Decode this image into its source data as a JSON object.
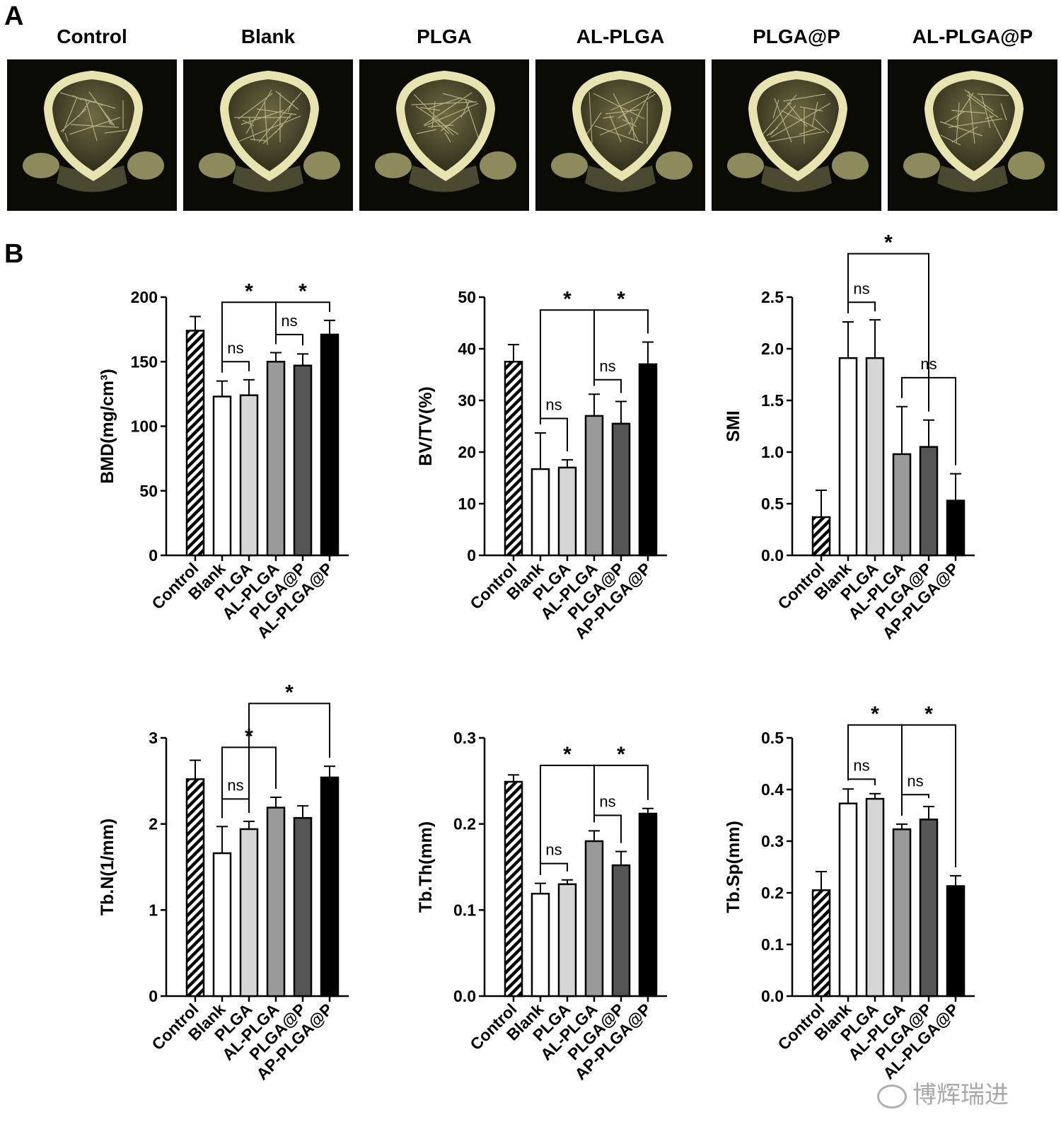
{
  "panel_letters": {
    "a": "A",
    "b": "B"
  },
  "images": [
    {
      "label": "Control"
    },
    {
      "label": "Blank"
    },
    {
      "label": "PLGA"
    },
    {
      "label": "AL-PLGA"
    },
    {
      "label": "PLGA@P"
    },
    {
      "label": "AL-PLGA@P"
    }
  ],
  "chart_data": [
    {
      "type": "bar",
      "ylabel": "BMD(mg/cm³)",
      "ylim": [
        0,
        200
      ],
      "yticks": [
        "0",
        "50",
        "100",
        "150",
        "200"
      ],
      "categories": [
        "Control",
        "Blank",
        "PLGA",
        "AL-PLGA",
        "PLGA@P",
        "AL-PLGA@P"
      ],
      "values": [
        174,
        123,
        124,
        150,
        147,
        171
      ],
      "errors": [
        11,
        12,
        12,
        7,
        9,
        11
      ],
      "annotations": [
        {
          "from": 2,
          "to": 3,
          "label": "ns",
          "y": 150
        },
        {
          "from": 4,
          "to": 5,
          "label": "ns",
          "y": 171
        },
        {
          "from": 2,
          "to": 4,
          "label": "*",
          "y": 196
        },
        {
          "from": 4,
          "to": 6,
          "label": "*",
          "y": 196
        }
      ]
    },
    {
      "type": "bar",
      "ylabel": "BV/TV(%)",
      "ylim": [
        0,
        50
      ],
      "yticks": [
        "0",
        "10",
        "20",
        "30",
        "40",
        "50"
      ],
      "categories": [
        "Control",
        "Blank",
        "PLGA",
        "AL-PLGA",
        "PLGA@P",
        "AP-PLGA@P"
      ],
      "values": [
        37.5,
        16.7,
        17,
        27,
        25.5,
        37
      ],
      "errors": [
        3.3,
        7,
        1.5,
        4.2,
        4.3,
        4.3
      ],
      "annotations": [
        {
          "from": 2,
          "to": 3,
          "label": "ns",
          "y": 26.5
        },
        {
          "from": 4,
          "to": 5,
          "label": "ns",
          "y": 34
        },
        {
          "from": 2,
          "to": 4,
          "label": "*",
          "y": 47.5
        },
        {
          "from": 4,
          "to": 6,
          "label": "*",
          "y": 47.5
        }
      ]
    },
    {
      "type": "bar",
      "ylabel": "SMI",
      "ylim": [
        0,
        2.5
      ],
      "yticks": [
        "0.0",
        "0.5",
        "1.0",
        "1.5",
        "2.0",
        "2.5"
      ],
      "categories": [
        "Control",
        "Blank",
        "PLGA",
        "AL-PLGA",
        "PLGA@P",
        "AP-PLGA@P"
      ],
      "values": [
        0.37,
        1.91,
        1.91,
        0.98,
        1.05,
        0.53
      ],
      "errors": [
        0.26,
        0.35,
        0.37,
        0.46,
        0.26,
        0.26
      ],
      "annotations": [
        {
          "from": 2,
          "to": 3,
          "label": "ns",
          "y": 2.45
        },
        {
          "from": 4,
          "to": 6,
          "label": "ns",
          "y": 1.72
        },
        {
          "from": 2,
          "to": 5,
          "label": "*",
          "y": 2.92
        }
      ]
    },
    {
      "type": "bar",
      "ylabel": "Tb.N(1/mm)",
      "ylim": [
        0,
        3
      ],
      "yticks": [
        "0",
        "1",
        "2",
        "3"
      ],
      "categories": [
        "Control",
        "Blank",
        "PLGA",
        "AL-PLGA",
        "PLGA@P",
        "AP-PLGA@P"
      ],
      "values": [
        2.52,
        1.66,
        1.94,
        2.19,
        2.07,
        2.54
      ],
      "errors": [
        0.22,
        0.31,
        0.09,
        0.12,
        0.14,
        0.13
      ],
      "annotations": [
        {
          "from": 2,
          "to": 3,
          "label": "ns",
          "y": 2.29
        },
        {
          "from": 2,
          "to": 4,
          "label": "*",
          "y": 2.89
        },
        {
          "from": 3,
          "to": 6,
          "label": "*",
          "y": 3.4
        }
      ]
    },
    {
      "type": "bar",
      "ylabel": "Tb.Th(mm)",
      "ylim": [
        0,
        0.3
      ],
      "yticks": [
        "0.0",
        "0.1",
        "0.2",
        "0.3"
      ],
      "categories": [
        "Control",
        "Blank",
        "PLGA",
        "AL-PLGA",
        "PLGA@P",
        "AP-PLGA@P"
      ],
      "values": [
        0.249,
        0.119,
        0.13,
        0.18,
        0.152,
        0.212
      ],
      "errors": [
        0.008,
        0.012,
        0.005,
        0.012,
        0.016,
        0.006
      ],
      "annotations": [
        {
          "from": 2,
          "to": 3,
          "label": "ns",
          "y": 0.154
        },
        {
          "from": 4,
          "to": 5,
          "label": "ns",
          "y": 0.21
        },
        {
          "from": 2,
          "to": 4,
          "label": "*",
          "y": 0.268
        },
        {
          "from": 4,
          "to": 6,
          "label": "*",
          "y": 0.268
        }
      ]
    },
    {
      "type": "bar",
      "ylabel": "Tb.Sp(mm)",
      "ylim": [
        0,
        0.5
      ],
      "yticks": [
        "0.0",
        "0.1",
        "0.2",
        "0.3",
        "0.4",
        "0.5"
      ],
      "categories": [
        "Control",
        "Blank",
        "PLGA",
        "AL-PLGA",
        "PLGA@P",
        "AL-PLGA@P"
      ],
      "values": [
        0.205,
        0.373,
        0.382,
        0.323,
        0.342,
        0.213
      ],
      "errors": [
        0.036,
        0.028,
        0.01,
        0.01,
        0.025,
        0.02
      ],
      "annotations": [
        {
          "from": 2,
          "to": 3,
          "label": "ns",
          "y": 0.42
        },
        {
          "from": 4,
          "to": 5,
          "label": "ns",
          "y": 0.39
        },
        {
          "from": 2,
          "to": 4,
          "label": "*",
          "y": 0.525
        },
        {
          "from": 4,
          "to": 6,
          "label": "*",
          "y": 0.525
        }
      ]
    }
  ],
  "watermark": "博辉瑞进"
}
